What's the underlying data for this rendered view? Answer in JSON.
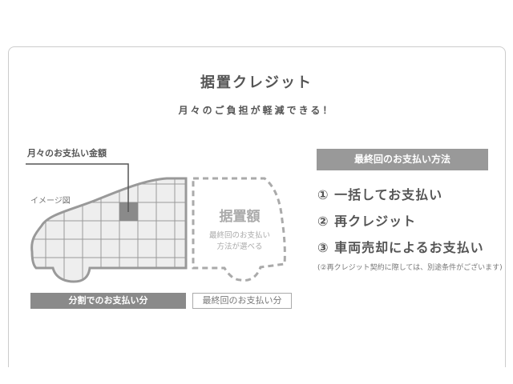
{
  "title": "据置クレジット",
  "subtitle": "月々のご負担が軽減できる！",
  "diagram": {
    "monthly_label": "月々のお支払い金額",
    "image_label": "イメージ図",
    "deferred_title": "据置額",
    "deferred_line1": "最終回のお支払い",
    "deferred_line2": "方法が選べる",
    "installment_label": "分割でのお支払い分",
    "final_label": "最終回のお支払い分"
  },
  "methods": {
    "header": "最終回のお支払い方法",
    "items": [
      "① 一括してお支払い",
      "② 再クレジット",
      "③ 車両売却によるお支払い"
    ],
    "note": "(②再クレジット契約に際しては、別途条件がございます)"
  },
  "colors": {
    "dark_gray": "#8a8a8a",
    "header_gray": "#999999",
    "grid_fill": "#eeeeee"
  }
}
